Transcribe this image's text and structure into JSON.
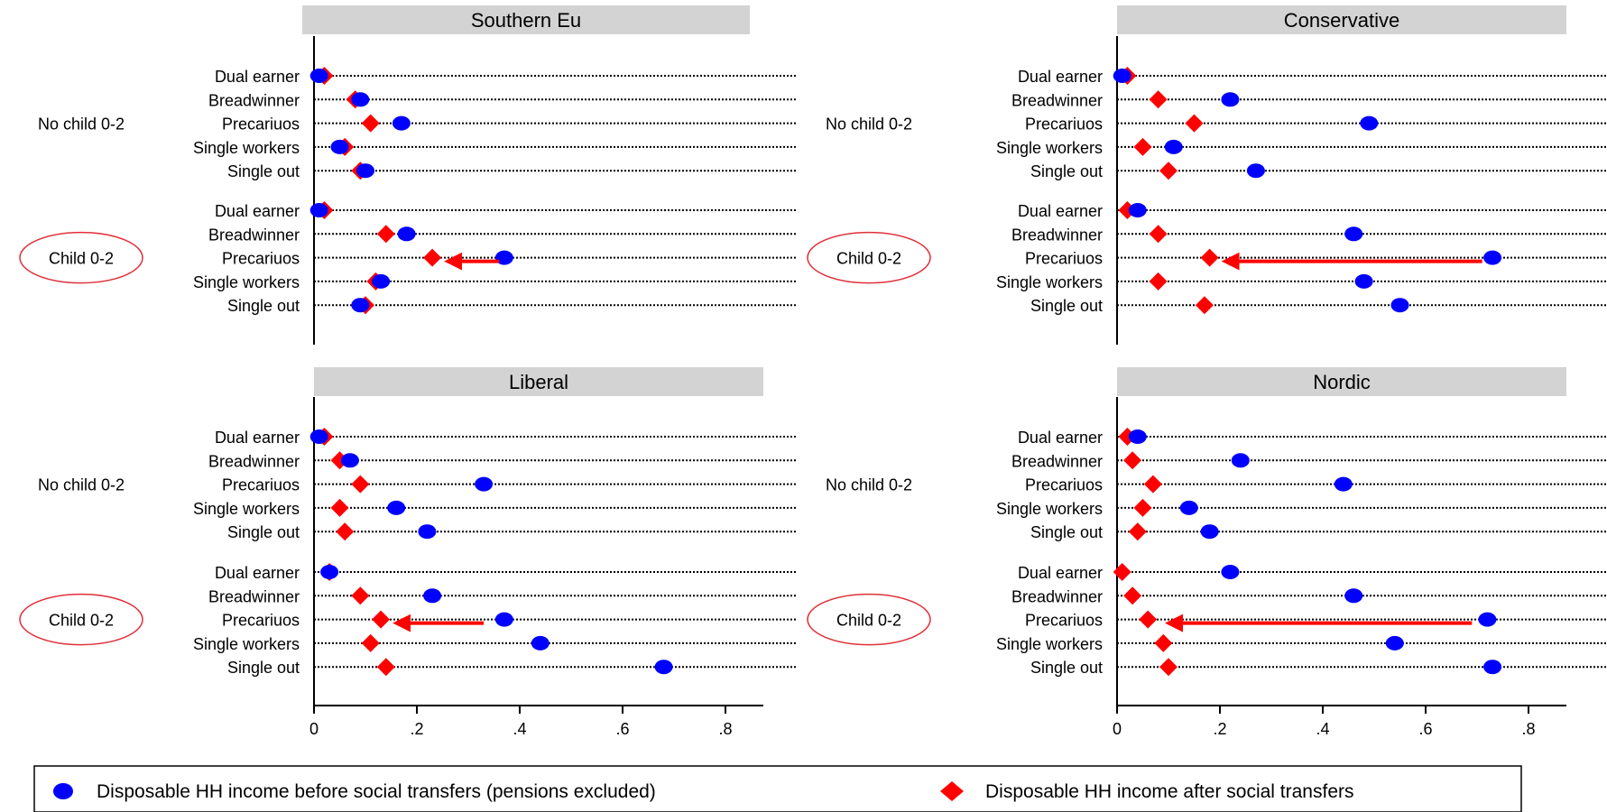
{
  "chart_data": [
    {
      "type": "scatter",
      "title": "Southern Eu",
      "xlim": [
        0,
        0.8
      ],
      "x_ticks": [
        "0",
        ".2",
        ".4",
        ".6",
        ".8"
      ],
      "group_labels": [
        "No child 0-2",
        "Child 0-2"
      ],
      "categories": [
        "Dual earner",
        "Breadwinner",
        "Precariuos",
        "Single workers",
        "Single out"
      ],
      "series": [
        {
          "name": "Disposable HH income before social transfers (pensions excluded)",
          "values_no_child": [
            0.01,
            0.09,
            0.17,
            0.05,
            0.1
          ],
          "values_child": [
            0.01,
            0.18,
            0.37,
            0.13,
            0.09
          ]
        },
        {
          "name": "Disposable HH income after social transfers",
          "values_no_child": [
            0.02,
            0.08,
            0.11,
            0.06,
            0.09
          ],
          "values_child": [
            0.02,
            0.14,
            0.23,
            0.12,
            0.1
          ]
        }
      ],
      "arrow": {
        "row": "Precariuos",
        "group": "Child 0-2",
        "from": 0.36,
        "to": 0.26
      }
    },
    {
      "type": "scatter",
      "title": "Conservative",
      "xlim": [
        0,
        0.8
      ],
      "x_ticks": [
        "0",
        ".2",
        ".4",
        ".6",
        ".8"
      ],
      "group_labels": [
        "No child 0-2",
        "Child 0-2"
      ],
      "categories": [
        "Dual earner",
        "Breadwinner",
        "Precariuos",
        "Single workers",
        "Single out"
      ],
      "series": [
        {
          "name": "Disposable HH income before social transfers (pensions excluded)",
          "values_no_child": [
            0.01,
            0.22,
            0.49,
            0.11,
            0.27
          ],
          "values_child": [
            0.04,
            0.46,
            0.73,
            0.48,
            0.55
          ]
        },
        {
          "name": "Disposable HH income after social transfers",
          "values_no_child": [
            0.02,
            0.08,
            0.15,
            0.05,
            0.1
          ],
          "values_child": [
            0.02,
            0.08,
            0.18,
            0.08,
            0.17
          ]
        }
      ],
      "arrow": {
        "row": "Precariuos",
        "group": "Child 0-2",
        "from": 0.71,
        "to": 0.21
      }
    },
    {
      "type": "scatter",
      "title": "Liberal",
      "xlim": [
        0,
        0.8
      ],
      "x_ticks": [
        "0",
        ".2",
        ".4",
        ".6",
        ".8"
      ],
      "group_labels": [
        "No child 0-2",
        "Child 0-2"
      ],
      "categories": [
        "Dual earner",
        "Breadwinner",
        "Precariuos",
        "Single workers",
        "Single out"
      ],
      "series": [
        {
          "name": "Disposable HH income before social transfers (pensions excluded)",
          "values_no_child": [
            0.01,
            0.07,
            0.33,
            0.16,
            0.22
          ],
          "values_child": [
            0.03,
            0.23,
            0.37,
            0.44,
            0.68
          ]
        },
        {
          "name": "Disposable HH income after social transfers",
          "values_no_child": [
            0.02,
            0.05,
            0.09,
            0.05,
            0.06
          ],
          "values_child": [
            0.03,
            0.09,
            0.13,
            0.11,
            0.14
          ]
        }
      ],
      "arrow": {
        "row": "Precariuos",
        "group": "Child 0-2",
        "from": 0.33,
        "to": 0.16
      }
    },
    {
      "type": "scatter",
      "title": "Nordic",
      "xlim": [
        0,
        0.8
      ],
      "x_ticks": [
        "0",
        ".2",
        ".4",
        ".6",
        ".8"
      ],
      "group_labels": [
        "No child 0-2",
        "Child 0-2"
      ],
      "categories": [
        "Dual earner",
        "Breadwinner",
        "Precariuos",
        "Single workers",
        "Single out"
      ],
      "series": [
        {
          "name": "Disposable HH income before social transfers (pensions excluded)",
          "values_no_child": [
            0.04,
            0.24,
            0.44,
            0.14,
            0.18
          ],
          "values_child": [
            0.22,
            0.46,
            0.72,
            0.54,
            0.73
          ]
        },
        {
          "name": "Disposable HH income after social transfers",
          "values_no_child": [
            0.02,
            0.03,
            0.07,
            0.05,
            0.04
          ],
          "values_child": [
            0.01,
            0.03,
            0.06,
            0.09,
            0.1
          ]
        }
      ],
      "arrow": {
        "row": "Precariuos",
        "group": "Child 0-2",
        "from": 0.69,
        "to": 0.1
      }
    }
  ],
  "legend": {
    "items": [
      {
        "label": "Disposable HH income before social transfers (pensions excluded)",
        "color": "#0000ff",
        "marker": "circle"
      },
      {
        "label": "Disposable HH income after social transfers",
        "color": "#ff0000",
        "marker": "diamond"
      }
    ]
  },
  "colors": {
    "before": "#0000ff",
    "after": "#ff0000",
    "arrow": "#ff0000",
    "highlight_ellipse": "#e0303a",
    "title_strip": "#d3d3d3"
  }
}
